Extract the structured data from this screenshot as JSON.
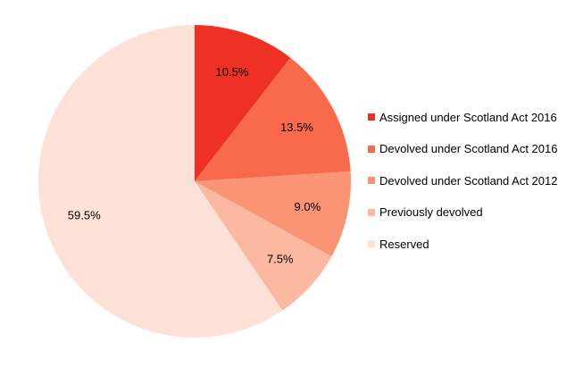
{
  "chart_data": {
    "type": "pie",
    "title": "",
    "slices": [
      {
        "label": "Assigned under Scotland Act 2016",
        "value": 10.5,
        "value_label": "10.5%",
        "color": "#ee3124"
      },
      {
        "label": "Devolved under Scotland Act 2016",
        "value": 13.5,
        "value_label": "13.5%",
        "color": "#f86a4b"
      },
      {
        "label": "Devolved under Scotland Act 2012",
        "value": 9.0,
        "value_label": "9.0%",
        "color": "#fb9475"
      },
      {
        "label": "Previously devolved",
        "value": 7.5,
        "value_label": "7.5%",
        "color": "#fcb8a0"
      },
      {
        "label": "Reserved",
        "value": 59.5,
        "value_label": "59.5%",
        "color": "#fde0d6"
      }
    ],
    "start_angle": "12 o'clock",
    "direction": "clockwise",
    "legend_position": "right"
  }
}
